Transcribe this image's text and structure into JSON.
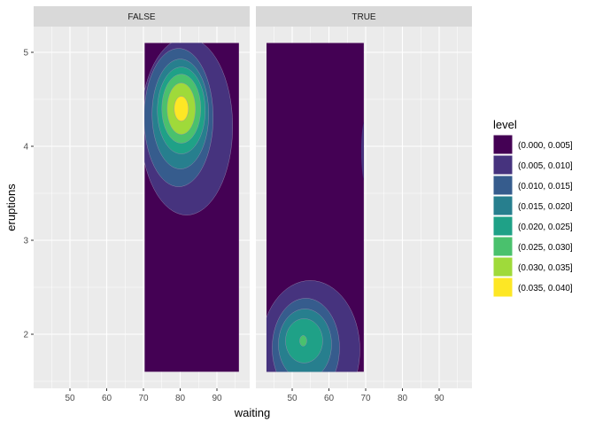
{
  "chart_data": {
    "type": "contour",
    "xlabel": "waiting",
    "ylabel": "eruptions",
    "facets": [
      "FALSE",
      "TRUE"
    ],
    "x_ticks": [
      50,
      60,
      70,
      80,
      90
    ],
    "y_ticks": [
      2,
      3,
      4,
      5
    ],
    "xlim": [
      41,
      97
    ],
    "ylim": [
      1.45,
      5.25
    ],
    "grid": true,
    "legend": {
      "title": "level",
      "position": "right",
      "entries": [
        "(0.000, 0.005]",
        "(0.005, 0.010]",
        "(0.010, 0.015]",
        "(0.015, 0.020]",
        "(0.020, 0.025]",
        "(0.025, 0.030]",
        "(0.030, 0.035]",
        "(0.035, 0.040]"
      ],
      "colors": [
        "#440154",
        "#46337E",
        "#365C8D",
        "#277F8E",
        "#1FA187",
        "#4AC16D",
        "#9FDA3A",
        "#FDE725"
      ]
    },
    "density_regions": [
      {
        "facet": "FALSE",
        "waiting_range": [
          70.3,
          96
        ],
        "eruptions_range": [
          1.6,
          5.1
        ],
        "peak": {
          "waiting": 80.3,
          "eruptions": 4.4,
          "level": "(0.035, 0.040]"
        }
      },
      {
        "facet": "TRUE",
        "waiting_range": [
          43,
          69.5
        ],
        "eruptions_range": [
          1.6,
          5.1
        ],
        "peak": {
          "waiting": 53,
          "eruptions": 1.93,
          "level": "(0.025, 0.030]"
        }
      }
    ]
  }
}
